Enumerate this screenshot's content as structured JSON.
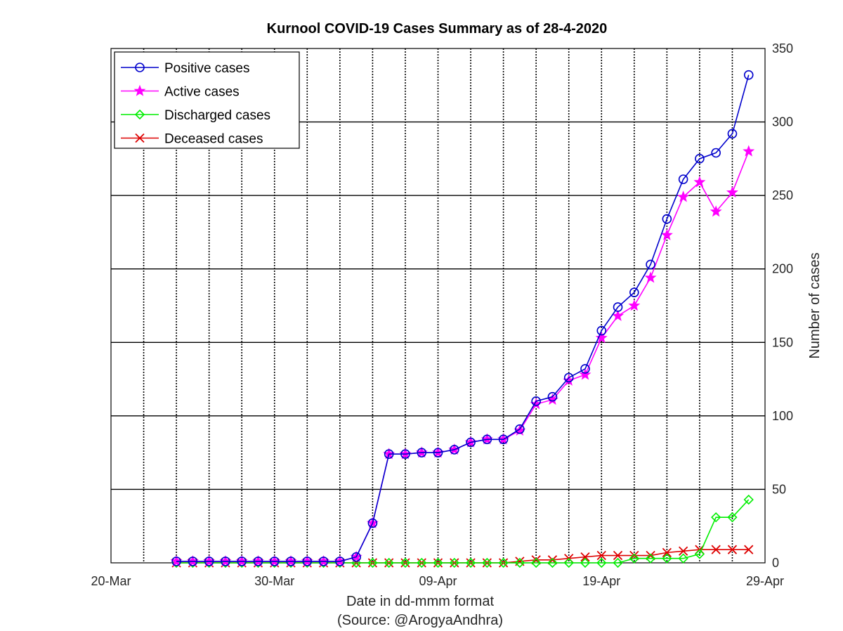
{
  "chart_data": {
    "type": "line",
    "title": "Kurnool COVID-19 Cases Summary as of 28-4-2020",
    "xlabel": "Date in dd-mmm format",
    "xlabel_note": "(Source: @ArogyaAndhra)",
    "ylabel": "Number of cases",
    "xlim": [
      0,
      40
    ],
    "ylim": [
      0,
      350
    ],
    "xticks": [
      {
        "value": 0,
        "label": "20-Mar"
      },
      {
        "value": 10,
        "label": "30-Mar"
      },
      {
        "value": 20,
        "label": "09-Apr"
      },
      {
        "value": 30,
        "label": "19-Apr"
      },
      {
        "value": 40,
        "label": "29-Apr"
      }
    ],
    "yticks": [
      0,
      50,
      100,
      150,
      200,
      250,
      300,
      350
    ],
    "x_gridlines": [
      2,
      4,
      6,
      8,
      10,
      12,
      14,
      16,
      18,
      20,
      22,
      24,
      26,
      28,
      30,
      32,
      34,
      36,
      38
    ],
    "y_gridlines": [
      50,
      100,
      150,
      200,
      250,
      300
    ],
    "legend_position": "top-left",
    "x": [
      4,
      5,
      6,
      7,
      8,
      9,
      10,
      11,
      12,
      13,
      14,
      15,
      16,
      17,
      18,
      19,
      20,
      21,
      22,
      23,
      24,
      25,
      26,
      27,
      28,
      29,
      30,
      31,
      32,
      33,
      34,
      35,
      36,
      37,
      38,
      39
    ],
    "series": [
      {
        "name": "Positive cases",
        "color": "#0000cc",
        "marker": "circle",
        "values": [
          1,
          1,
          1,
          1,
          1,
          1,
          1,
          1,
          1,
          1,
          1,
          4,
          27,
          74,
          74,
          75,
          75,
          77,
          82,
          84,
          84,
          91,
          110,
          113,
          126,
          132,
          158,
          174,
          184,
          203,
          234,
          261,
          275,
          279,
          292,
          332
        ]
      },
      {
        "name": "Active cases",
        "color": "#ff00ff",
        "marker": "star",
        "values": [
          1,
          1,
          1,
          1,
          1,
          1,
          1,
          1,
          1,
          1,
          1,
          4,
          27,
          74,
          74,
          75,
          75,
          77,
          82,
          84,
          84,
          90,
          108,
          111,
          124,
          128,
          153,
          168,
          175,
          194,
          223,
          249,
          259,
          239,
          252,
          280
        ]
      },
      {
        "name": "Discharged cases",
        "color": "#00ee00",
        "marker": "diamond",
        "values": [
          0,
          0,
          0,
          0,
          0,
          0,
          0,
          0,
          0,
          0,
          0,
          0,
          0,
          0,
          0,
          0,
          0,
          0,
          0,
          0,
          0,
          0,
          0,
          0,
          0,
          0,
          0,
          0,
          3,
          3,
          3,
          3,
          6,
          31,
          31,
          43
        ]
      },
      {
        "name": "Deceased cases",
        "color": "#dd0000",
        "marker": "x",
        "values": [
          0,
          0,
          0,
          0,
          0,
          0,
          0,
          0,
          0,
          0,
          0,
          0,
          0,
          0,
          0,
          0,
          0,
          0,
          0,
          0,
          0,
          1,
          2,
          2,
          3,
          4,
          5,
          5,
          5,
          5,
          7,
          8,
          9,
          9,
          9,
          9
        ]
      }
    ]
  }
}
